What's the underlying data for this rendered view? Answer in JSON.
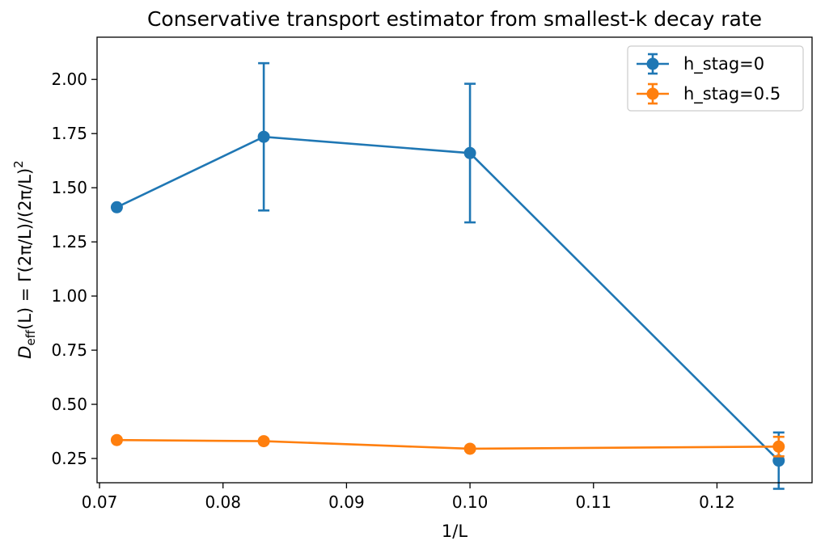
{
  "chart_data": {
    "type": "line",
    "title": "Conservative transport estimator from smallest-k decay rate",
    "xlabel": "1/L",
    "ylabel_parts": [
      "D",
      "eff",
      "(L) = Γ(2π/L)/(2π/L)",
      "2"
    ],
    "xlim": [
      0.0698,
      0.1277
    ],
    "ylim": [
      0.138,
      2.195
    ],
    "x_ticks": [
      0.07,
      0.08,
      0.09,
      0.1,
      0.11,
      0.12
    ],
    "x_tick_labels": [
      "0.07",
      "0.08",
      "0.09",
      "0.10",
      "0.11",
      "0.12"
    ],
    "y_ticks": [
      0.25,
      0.5,
      0.75,
      1.0,
      1.25,
      1.5,
      1.75,
      2.0
    ],
    "y_tick_labels": [
      "0.25",
      "0.50",
      "0.75",
      "1.00",
      "1.25",
      "1.50",
      "1.75",
      "2.00"
    ],
    "grid": false,
    "legend_position": "top-right",
    "series": [
      {
        "name": "h_stag=0",
        "color": "#1f77b4",
        "x": [
          0.0714,
          0.0833,
          0.1,
          0.125
        ],
        "y": [
          1.41,
          1.735,
          1.66,
          0.24
        ],
        "yerr": [
          0.0,
          0.34,
          0.32,
          0.13
        ]
      },
      {
        "name": "h_stag=0.5",
        "color": "#ff7f0e",
        "x": [
          0.0714,
          0.0833,
          0.1,
          0.125
        ],
        "y": [
          0.335,
          0.33,
          0.295,
          0.305
        ],
        "yerr": [
          0.0,
          0.0,
          0.0,
          0.045
        ]
      }
    ]
  }
}
